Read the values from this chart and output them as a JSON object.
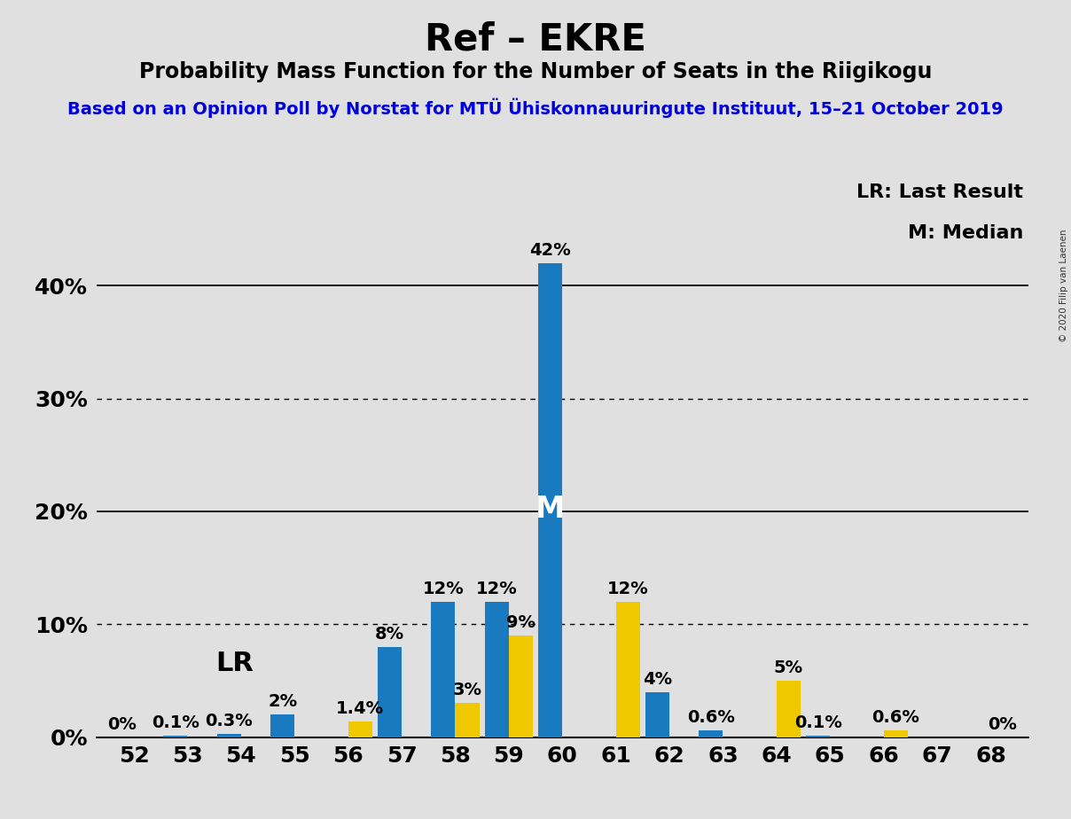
{
  "title": "Ref – EKRE",
  "subtitle": "Probability Mass Function for the Number of Seats in the Riigikogu",
  "source_line": "Based on an Opinion Poll by Norstat for MTÜ Ühiskonnauuringute Instituut, 15–21 October 2019",
  "copyright": "© 2020 Filip van Laenen",
  "seats": [
    52,
    53,
    54,
    55,
    56,
    57,
    58,
    59,
    60,
    61,
    62,
    63,
    64,
    65,
    66,
    67,
    68
  ],
  "blue_values": [
    0.0,
    0.1,
    0.3,
    2.0,
    0.0,
    8.0,
    12.0,
    12.0,
    42.0,
    0.0,
    4.0,
    0.6,
    0.0,
    0.1,
    0.0,
    0.0,
    0.0
  ],
  "yellow_values": [
    0.0,
    0.0,
    0.0,
    0.0,
    1.4,
    0.0,
    3.0,
    9.0,
    0.0,
    12.0,
    0.0,
    0.0,
    5.0,
    0.0,
    0.6,
    0.0,
    0.0
  ],
  "blue_labels": [
    "0%",
    "0.1%",
    "0.3%",
    "2%",
    "",
    "8%",
    "12%",
    "12%",
    "42%",
    "",
    "4%",
    "0.6%",
    "",
    "0.1%",
    "",
    "",
    ""
  ],
  "yellow_labels": [
    "",
    "",
    "",
    "",
    "1.4%",
    "",
    "3%",
    "9%",
    "",
    "12%",
    "",
    "",
    "5%",
    "",
    "0.6%",
    "",
    "0%"
  ],
  "blue_color": "#1a7abf",
  "yellow_color": "#f0c800",
  "background_color": "#e0e0e0",
  "median_seat": 60,
  "lr_seat": 55,
  "lr_label": "LR",
  "median_label": "M",
  "legend_lr": "LR: Last Result",
  "legend_m": "M: Median",
  "ylim_max": 45,
  "yticks": [
    0,
    10,
    20,
    30,
    40
  ],
  "ytick_labels": [
    "0%",
    "10%",
    "20%",
    "30%",
    "40%"
  ],
  "dotted_lines": [
    10,
    30
  ],
  "solid_lines": [
    20,
    40
  ],
  "bar_width": 0.45,
  "title_fontsize": 30,
  "subtitle_fontsize": 17,
  "source_fontsize": 14,
  "tick_fontsize": 18,
  "label_fontsize": 14,
  "lr_fontsize": 22,
  "m_fontsize": 24
}
